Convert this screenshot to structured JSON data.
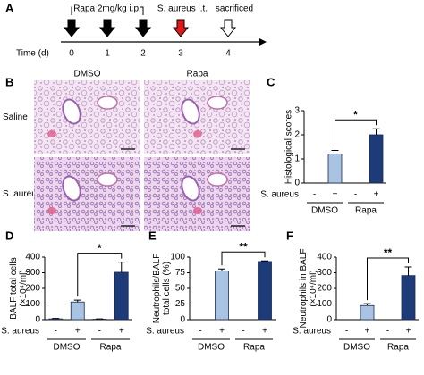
{
  "timeline": {
    "panel": "A",
    "treatment": "Rapa 2mg/kg i.p.",
    "infection": "S. aureus i.t.",
    "endpoint": "sacrificed",
    "axis_label": "Time (d)",
    "days": [
      0,
      1,
      2,
      3,
      4
    ]
  },
  "histology": {
    "panel": "B",
    "columns": [
      "DMSO",
      "Rapa"
    ],
    "rows": [
      "Saline",
      "S. aureus"
    ]
  },
  "chart_data": [
    {
      "type": "bar",
      "panel": "C",
      "ylabel": [
        "Histological scores"
      ],
      "row_label": "S. aureus",
      "categories": [
        "-",
        "+",
        "-",
        "+"
      ],
      "values": [
        null,
        1.2,
        null,
        2.0
      ],
      "errors": [
        null,
        0.15,
        null,
        0.25
      ],
      "groups": [
        {
          "name": "DMSO",
          "color": "#a9c4e2"
        },
        {
          "name": "Rapa",
          "color": "#1c3b78"
        }
      ],
      "ylim": [
        0,
        3
      ],
      "yticks": [
        0,
        1,
        2,
        3
      ],
      "significance": "*"
    },
    {
      "type": "bar",
      "panel": "D",
      "ylabel": [
        "BALF total cells",
        "(×10⁴/ml)"
      ],
      "row_label": "S. aureus",
      "categories": [
        "-",
        "+",
        "-",
        "+"
      ],
      "values": [
        5,
        113,
        3,
        303
      ],
      "errors": [
        3,
        12,
        2,
        65
      ],
      "groups": [
        {
          "name": "DMSO",
          "color": "#a9c4e2"
        },
        {
          "name": "Rapa",
          "color": "#1c3b78"
        }
      ],
      "ylim": [
        0,
        400
      ],
      "yticks": [
        0,
        100,
        200,
        300,
        400
      ],
      "significance": "*"
    },
    {
      "type": "bar",
      "panel": "E",
      "ylabel": [
        "Neutrophils/BALF",
        "total cells (%)"
      ],
      "row_label": "S. aureus",
      "categories": [
        "-",
        "+",
        "-",
        "+"
      ],
      "values": [
        null,
        78,
        null,
        93
      ],
      "errors": [
        null,
        3,
        null,
        1
      ],
      "groups": [
        {
          "name": "DMSO",
          "color": "#a9c4e2"
        },
        {
          "name": "Rapa",
          "color": "#1c3b78"
        }
      ],
      "ylim": [
        0,
        100
      ],
      "yticks": [
        0,
        25,
        50,
        75,
        100
      ],
      "significance": "**"
    },
    {
      "type": "bar",
      "panel": "F",
      "ylabel": [
        "Neutrophils in BALF",
        "(×10⁴/ml)"
      ],
      "row_label": "S. aureus",
      "categories": [
        "-",
        "+",
        "-",
        "+"
      ],
      "values": [
        null,
        90,
        null,
        282
      ],
      "errors": [
        null,
        12,
        null,
        55
      ],
      "groups": [
        {
          "name": "DMSO",
          "color": "#a9c4e2"
        },
        {
          "name": "Rapa",
          "color": "#1c3b78"
        }
      ],
      "ylim": [
        0,
        400
      ],
      "yticks": [
        0,
        100,
        200,
        300,
        400
      ],
      "significance": "**"
    }
  ]
}
